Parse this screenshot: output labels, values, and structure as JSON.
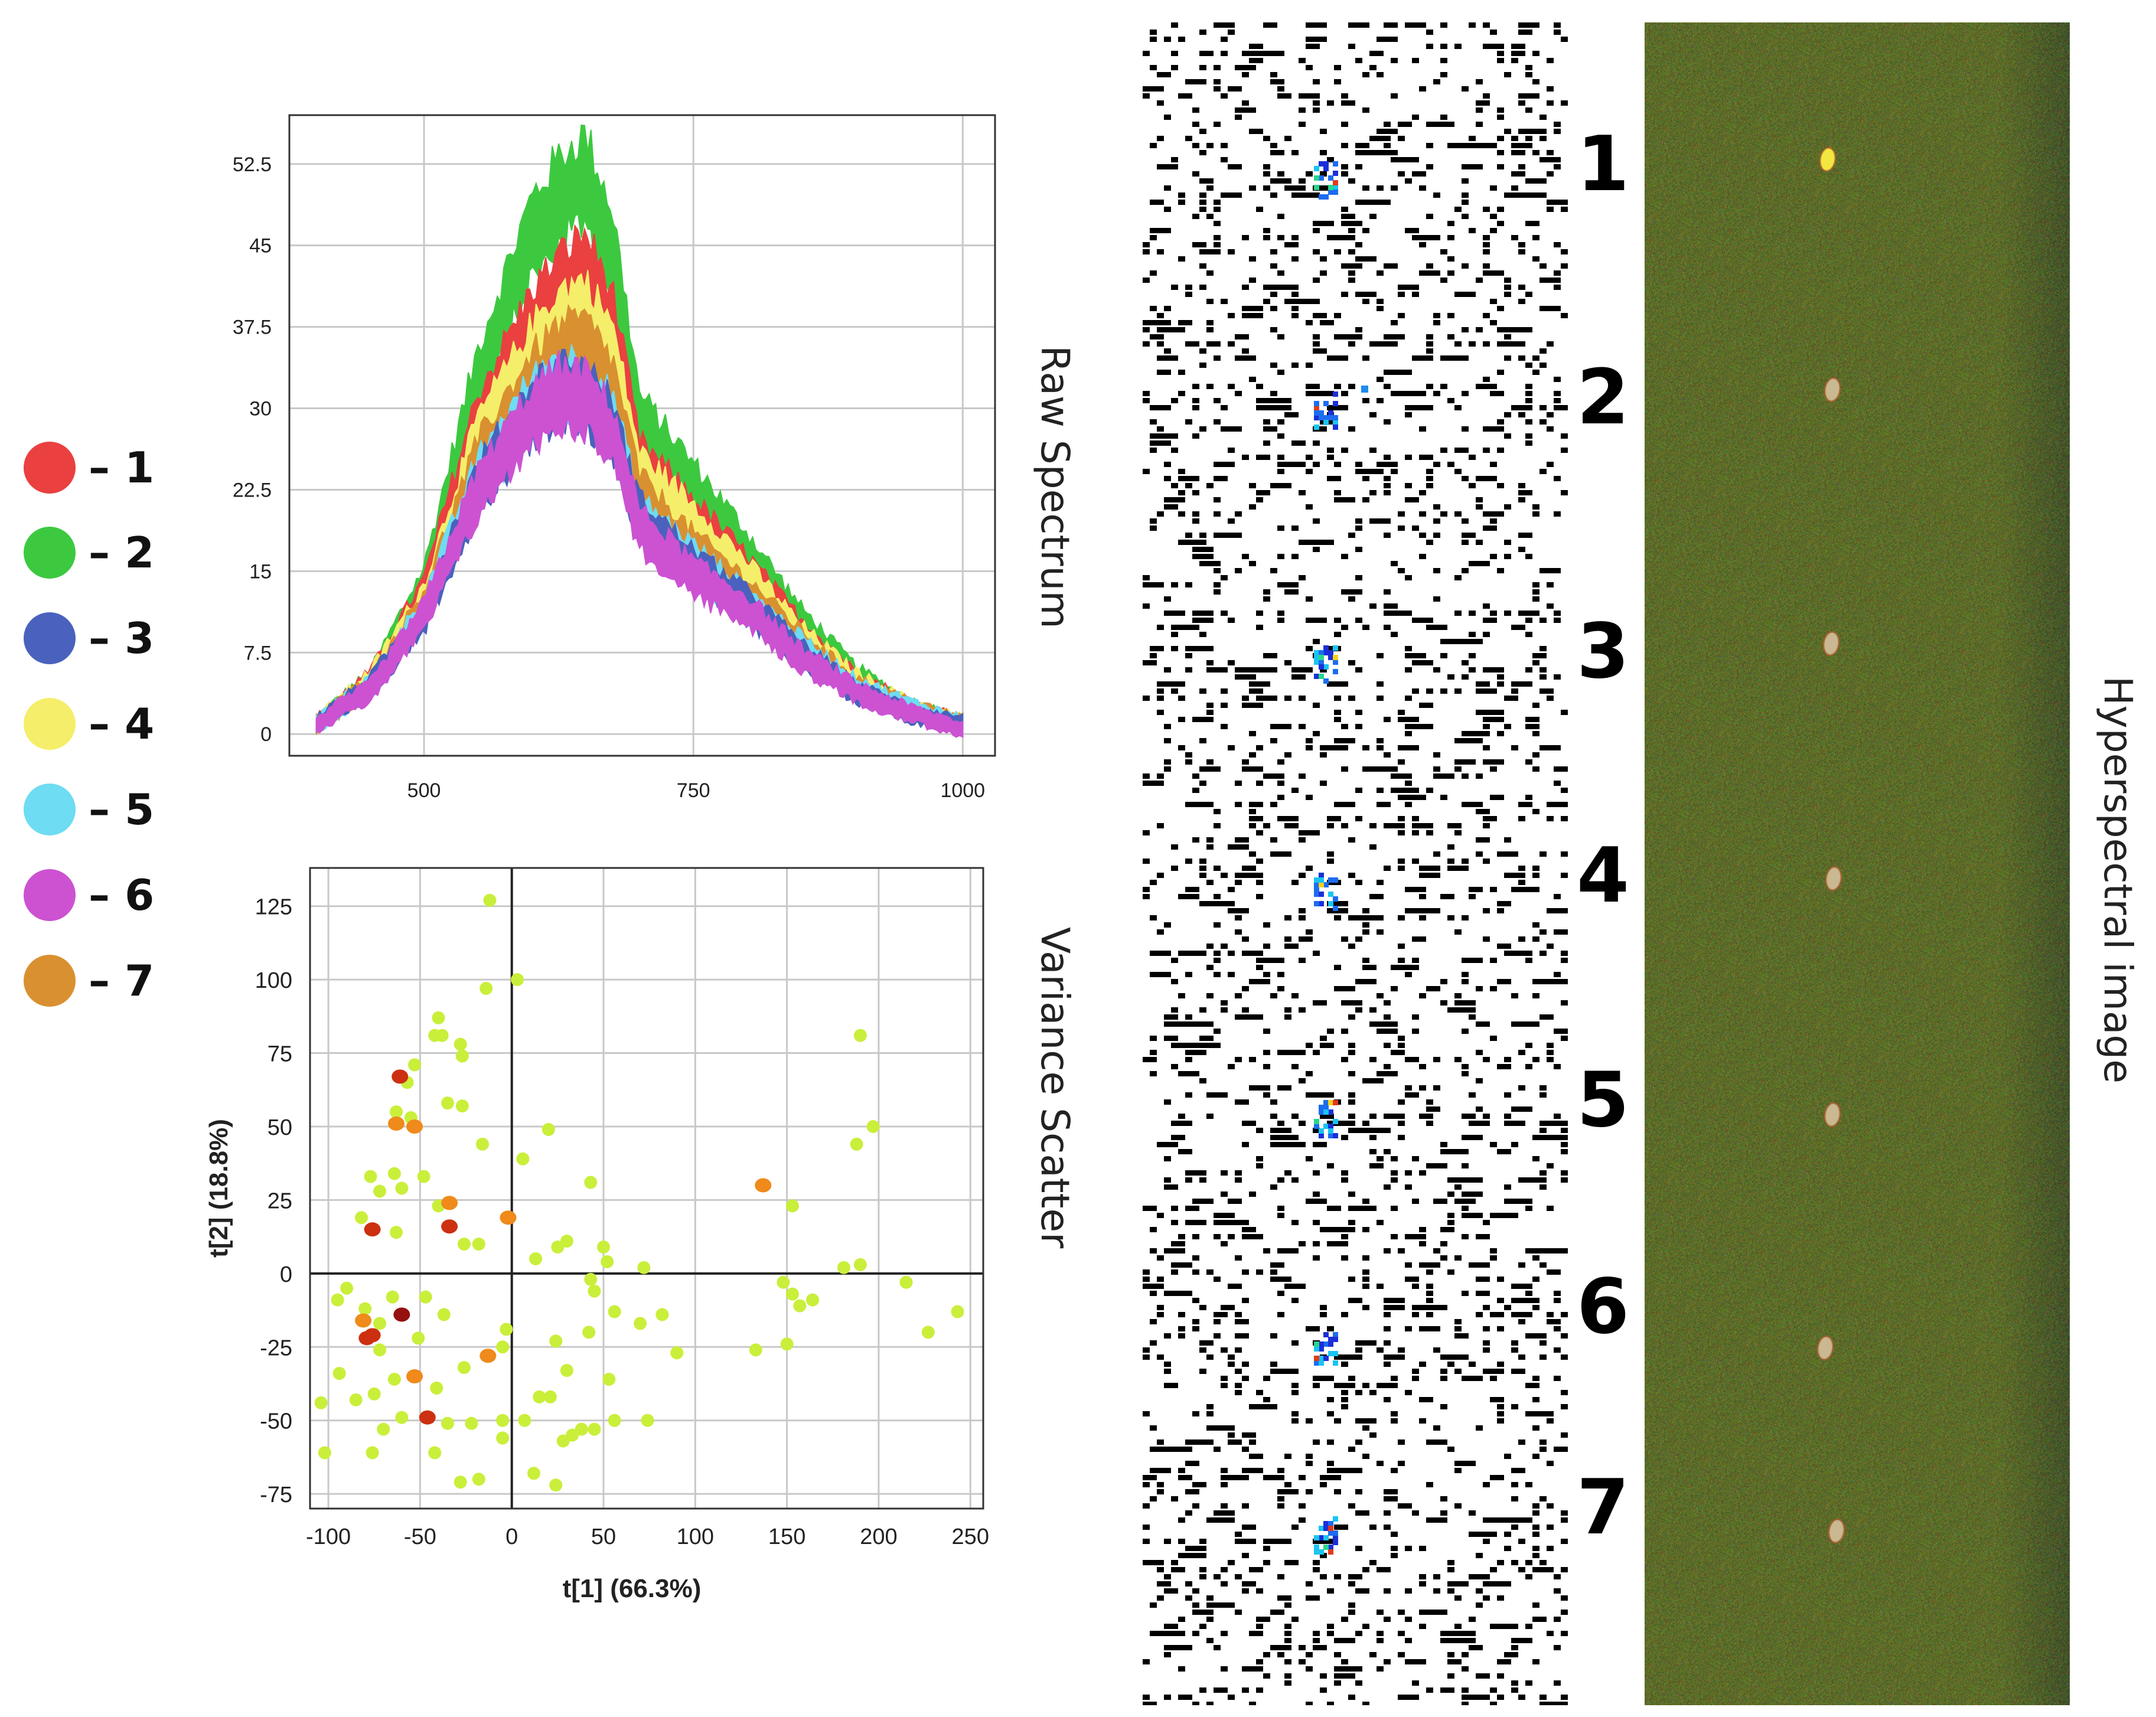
{
  "colors": {
    "c1": "#ea4040",
    "c2": "#3cc93f",
    "c3": "#4a62bd",
    "c4": "#f5ee6a",
    "c5": "#6edcf2",
    "c6": "#cc52d2",
    "c7": "#d99030",
    "point_light": "#c9ef3a",
    "point_orange": "#ef8a1b",
    "point_red": "#cc3010",
    "point_dark": "#961010",
    "grid": "#c8c8c8",
    "field_green": "#5f6a2a"
  },
  "legend": [
    {
      "label": "– 1",
      "color_key": "c1"
    },
    {
      "label": "– 2",
      "color_key": "c2"
    },
    {
      "label": "– 3",
      "color_key": "c3"
    },
    {
      "label": "– 4",
      "color_key": "c4"
    },
    {
      "label": "– 5",
      "color_key": "c5"
    },
    {
      "label": "– 6",
      "color_key": "c6"
    },
    {
      "label": "– 7",
      "color_key": "c7"
    }
  ],
  "panel_titles": {
    "raw_spectrum": "Raw Spectrum",
    "variance_scatter": "Variance Scatter",
    "hyperspectral": "Hyperspectral image"
  },
  "strip_numbers": [
    "1",
    "2",
    "3",
    "4",
    "5",
    "6",
    "7"
  ],
  "chart_data": [
    {
      "type": "area",
      "title": "Raw Spectrum",
      "xlabel": "",
      "ylabel": "",
      "xlim": [
        375,
        1030
      ],
      "ylim": [
        -2,
        57
      ],
      "xticks": [
        500,
        750,
        1000
      ],
      "yticks": [
        0,
        7.5,
        15,
        22.5,
        30,
        37.5,
        45,
        52.5
      ],
      "ytick_labels": [
        "0",
        "7.5",
        "15",
        "22.5",
        "30",
        "37.5",
        "45",
        "52.5"
      ],
      "grid": true,
      "series": [
        {
          "name": "2",
          "color_key": "c2",
          "x": [
            400,
            450,
            500,
            550,
            600,
            625,
            650,
            675,
            700,
            750,
            800,
            850,
            900,
            950,
            1000
          ],
          "values": [
            1,
            5,
            14,
            33,
            46,
            49.5,
            51.5,
            45,
            29,
            23,
            17,
            10.5,
            5.5,
            2.5,
            1
          ]
        },
        {
          "name": "1",
          "color_key": "c1",
          "x": [
            400,
            450,
            500,
            550,
            600,
            625,
            650,
            675,
            700,
            750,
            800,
            850,
            900,
            950,
            1000
          ],
          "values": [
            1,
            5,
            13,
            29,
            38,
            41,
            43,
            38,
            25,
            20,
            15,
            9.5,
            5,
            2.5,
            1
          ]
        },
        {
          "name": "4",
          "color_key": "c4",
          "x": [
            400,
            450,
            500,
            550,
            600,
            625,
            650,
            675,
            700,
            750,
            800,
            850,
            900,
            950,
            1000
          ],
          "values": [
            1,
            5,
            12.5,
            27,
            35,
            38,
            39,
            35,
            24,
            19.5,
            14.5,
            9,
            5,
            2.5,
            1
          ]
        },
        {
          "name": "7",
          "color_key": "c7",
          "x": [
            400,
            450,
            500,
            550,
            600,
            625,
            650,
            675,
            700,
            750,
            800,
            850,
            900,
            950,
            1000
          ],
          "values": [
            1,
            4.5,
            12,
            25,
            32.5,
            35,
            35.5,
            32,
            22,
            17,
            13,
            8.5,
            4.5,
            2.5,
            1
          ]
        },
        {
          "name": "5",
          "color_key": "c5",
          "x": [
            400,
            450,
            500,
            550,
            600,
            625,
            650,
            675,
            700,
            750,
            800,
            850,
            900,
            950,
            1000
          ],
          "values": [
            1,
            4.5,
            11.5,
            23.5,
            30.5,
            32.5,
            32,
            29,
            20,
            16,
            12,
            8,
            4.5,
            2.5,
            1
          ]
        },
        {
          "name": "3",
          "color_key": "c3",
          "x": [
            400,
            450,
            500,
            550,
            600,
            625,
            650,
            675,
            700,
            750,
            800,
            850,
            900,
            950,
            1000
          ],
          "values": [
            1,
            4.5,
            11,
            23,
            30,
            32,
            31.5,
            28.5,
            20,
            15.5,
            12,
            7.5,
            4,
            2,
            1
          ]
        },
        {
          "name": "6",
          "color_key": "c6",
          "x": [
            400,
            450,
            500,
            550,
            600,
            625,
            650,
            675,
            700,
            750,
            800,
            850,
            900,
            950,
            1000
          ],
          "values": [
            1,
            4,
            11,
            22.5,
            29.5,
            31.5,
            31,
            28,
            19,
            14.5,
            11.5,
            7,
            4,
            2,
            0.5
          ]
        }
      ]
    },
    {
      "type": "scatter",
      "title": "Variance Scatter",
      "xlabel": "t[1] (66.3%)",
      "ylabel": "t[2] (18.8%)",
      "xlim": [
        -110,
        257
      ],
      "ylim": [
        -80,
        138
      ],
      "xticks": [
        -100,
        -50,
        0,
        50,
        100,
        150,
        200,
        250
      ],
      "yticks": [
        -75,
        -50,
        -25,
        0,
        25,
        50,
        75,
        100,
        125
      ],
      "grid": true,
      "points": [
        {
          "x": -12,
          "y": 127,
          "c": "light"
        },
        {
          "x": -14,
          "y": 97,
          "c": "light"
        },
        {
          "x": 3,
          "y": 100,
          "c": "light"
        },
        {
          "x": -42,
          "y": 81,
          "c": "light"
        },
        {
          "x": -38,
          "y": 81,
          "c": "light"
        },
        {
          "x": -40,
          "y": 87,
          "c": "light"
        },
        {
          "x": -28,
          "y": 78,
          "c": "light"
        },
        {
          "x": -27,
          "y": 74,
          "c": "light"
        },
        {
          "x": -53,
          "y": 71,
          "c": "light"
        },
        {
          "x": -57,
          "y": 65,
          "c": "light"
        },
        {
          "x": -35,
          "y": 58,
          "c": "light"
        },
        {
          "x": -27,
          "y": 57,
          "c": "light"
        },
        {
          "x": -63,
          "y": 55,
          "c": "light"
        },
        {
          "x": -55,
          "y": 53,
          "c": "light"
        },
        {
          "x": -16,
          "y": 44,
          "c": "light"
        },
        {
          "x": 20,
          "y": 49,
          "c": "light"
        },
        {
          "x": 6,
          "y": 39,
          "c": "light"
        },
        {
          "x": -77,
          "y": 33,
          "c": "light"
        },
        {
          "x": -64,
          "y": 34,
          "c": "light"
        },
        {
          "x": -48,
          "y": 33,
          "c": "light"
        },
        {
          "x": -60,
          "y": 29,
          "c": "light"
        },
        {
          "x": -72,
          "y": 28,
          "c": "light"
        },
        {
          "x": 43,
          "y": 31,
          "c": "light"
        },
        {
          "x": -40,
          "y": 23,
          "c": "light"
        },
        {
          "x": -82,
          "y": 19,
          "c": "light"
        },
        {
          "x": -63,
          "y": 14,
          "c": "light"
        },
        {
          "x": -26,
          "y": 10,
          "c": "light"
        },
        {
          "x": -18,
          "y": 10,
          "c": "light"
        },
        {
          "x": 25,
          "y": 9,
          "c": "light"
        },
        {
          "x": 30,
          "y": 11,
          "c": "light"
        },
        {
          "x": 13,
          "y": 5,
          "c": "light"
        },
        {
          "x": 50,
          "y": 9,
          "c": "light"
        },
        {
          "x": 52,
          "y": 4,
          "c": "light"
        },
        {
          "x": 72,
          "y": 2,
          "c": "light"
        },
        {
          "x": -90,
          "y": -5,
          "c": "light"
        },
        {
          "x": -95,
          "y": -9,
          "c": "light"
        },
        {
          "x": -80,
          "y": -12,
          "c": "light"
        },
        {
          "x": -65,
          "y": -8,
          "c": "light"
        },
        {
          "x": -47,
          "y": -8,
          "c": "light"
        },
        {
          "x": -37,
          "y": -14,
          "c": "light"
        },
        {
          "x": 43,
          "y": -2,
          "c": "light"
        },
        {
          "x": 45,
          "y": -6,
          "c": "light"
        },
        {
          "x": 56,
          "y": -13,
          "c": "light"
        },
        {
          "x": 82,
          "y": -14,
          "c": "light"
        },
        {
          "x": 42,
          "y": -20,
          "c": "light"
        },
        {
          "x": 70,
          "y": -17,
          "c": "light"
        },
        {
          "x": -72,
          "y": -17,
          "c": "light"
        },
        {
          "x": -51,
          "y": -22,
          "c": "light"
        },
        {
          "x": -3,
          "y": -19,
          "c": "light"
        },
        {
          "x": -5,
          "y": -25,
          "c": "light"
        },
        {
          "x": 24,
          "y": -23,
          "c": "light"
        },
        {
          "x": 90,
          "y": -27,
          "c": "light"
        },
        {
          "x": -94,
          "y": -34,
          "c": "light"
        },
        {
          "x": -72,
          "y": -26,
          "c": "light"
        },
        {
          "x": -64,
          "y": -36,
          "c": "light"
        },
        {
          "x": -26,
          "y": -32,
          "c": "light"
        },
        {
          "x": -41,
          "y": -39,
          "c": "light"
        },
        {
          "x": 30,
          "y": -33,
          "c": "light"
        },
        {
          "x": 53,
          "y": -36,
          "c": "light"
        },
        {
          "x": -104,
          "y": -44,
          "c": "light"
        },
        {
          "x": -85,
          "y": -43,
          "c": "light"
        },
        {
          "x": -75,
          "y": -41,
          "c": "light"
        },
        {
          "x": 15,
          "y": -42,
          "c": "light"
        },
        {
          "x": 21,
          "y": -42,
          "c": "light"
        },
        {
          "x": -60,
          "y": -49,
          "c": "light"
        },
        {
          "x": -35,
          "y": -51,
          "c": "light"
        },
        {
          "x": -22,
          "y": -51,
          "c": "light"
        },
        {
          "x": -5,
          "y": -50,
          "c": "light"
        },
        {
          "x": 7,
          "y": -50,
          "c": "light"
        },
        {
          "x": 56,
          "y": -50,
          "c": "light"
        },
        {
          "x": 74,
          "y": -50,
          "c": "light"
        },
        {
          "x": -70,
          "y": -53,
          "c": "light"
        },
        {
          "x": 38,
          "y": -53,
          "c": "light"
        },
        {
          "x": 45,
          "y": -53,
          "c": "light"
        },
        {
          "x": 33,
          "y": -55,
          "c": "light"
        },
        {
          "x": -5,
          "y": -56,
          "c": "light"
        },
        {
          "x": 28,
          "y": -57,
          "c": "light"
        },
        {
          "x": -102,
          "y": -61,
          "c": "light"
        },
        {
          "x": -76,
          "y": -61,
          "c": "light"
        },
        {
          "x": -42,
          "y": -61,
          "c": "light"
        },
        {
          "x": 12,
          "y": -68,
          "c": "light"
        },
        {
          "x": -28,
          "y": -71,
          "c": "light"
        },
        {
          "x": -18,
          "y": -70,
          "c": "light"
        },
        {
          "x": 24,
          "y": -72,
          "c": "light"
        },
        {
          "x": 190,
          "y": 81,
          "c": "light"
        },
        {
          "x": 197,
          "y": 50,
          "c": "light"
        },
        {
          "x": 188,
          "y": 44,
          "c": "light"
        },
        {
          "x": 153,
          "y": 23,
          "c": "light"
        },
        {
          "x": 181,
          "y": 2,
          "c": "light"
        },
        {
          "x": 190,
          "y": 3,
          "c": "light"
        },
        {
          "x": 148,
          "y": -3,
          "c": "light"
        },
        {
          "x": 153,
          "y": -7,
          "c": "light"
        },
        {
          "x": 157,
          "y": -11,
          "c": "light"
        },
        {
          "x": 164,
          "y": -9,
          "c": "light"
        },
        {
          "x": 215,
          "y": -3,
          "c": "light"
        },
        {
          "x": 243,
          "y": -13,
          "c": "light"
        },
        {
          "x": 227,
          "y": -20,
          "c": "light"
        },
        {
          "x": 150,
          "y": -24,
          "c": "light"
        },
        {
          "x": 133,
          "y": -26,
          "c": "light"
        },
        {
          "x": -61,
          "y": 67,
          "c": "red"
        },
        {
          "x": -63,
          "y": 51,
          "c": "orange"
        },
        {
          "x": -53,
          "y": 50,
          "c": "orange"
        },
        {
          "x": -34,
          "y": 24,
          "c": "orange"
        },
        {
          "x": -34,
          "y": 16,
          "c": "red"
        },
        {
          "x": -2,
          "y": 19,
          "c": "orange"
        },
        {
          "x": -76,
          "y": 15,
          "c": "red"
        },
        {
          "x": 137,
          "y": 30,
          "c": "orange"
        },
        {
          "x": -60,
          "y": -14,
          "c": "dark"
        },
        {
          "x": -81,
          "y": -16,
          "c": "orange"
        },
        {
          "x": -79,
          "y": -22,
          "c": "red"
        },
        {
          "x": -76,
          "y": -21,
          "c": "red"
        },
        {
          "x": -53,
          "y": -35,
          "c": "orange"
        },
        {
          "x": -13,
          "y": -28,
          "c": "orange"
        },
        {
          "x": -46,
          "y": -49,
          "c": "red"
        }
      ]
    }
  ]
}
